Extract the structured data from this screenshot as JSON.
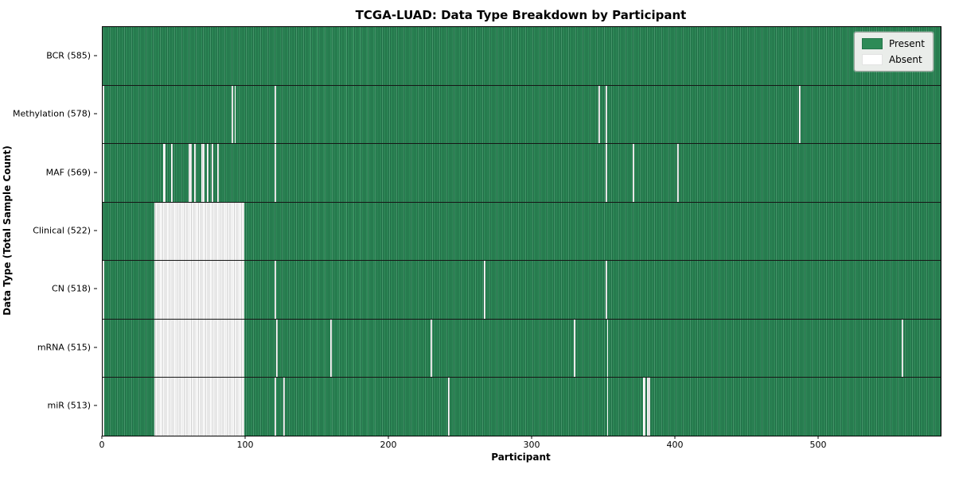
{
  "title": "TCGA-LUAD: Data Type Breakdown by Participant",
  "xlabel": "Participant",
  "ylabel": "Data Type (Total Sample Count)",
  "legend": {
    "present_label": "Present",
    "absent_label": "Absent"
  },
  "colors": {
    "present_fill": "#2e8b57",
    "present_edge": "#1e6a44",
    "absent_fill": "#ffffff",
    "absent_edge": "#cfcfcf"
  },
  "chart_data": {
    "type": "heatmap",
    "title": "TCGA-LUAD: Data Type Breakdown by Participant",
    "xlabel": "Participant",
    "ylabel": "Data Type (Total Sample Count)",
    "x_total_participants": 585,
    "x_ticks": [
      0,
      100,
      200,
      300,
      400,
      500
    ],
    "legend_entries": [
      "Present",
      "Absent"
    ],
    "legend_position": "upper right",
    "rows": [
      {
        "label": "BCR",
        "present_count": 585,
        "display": "BCR (585)",
        "absent_ranges": [],
        "absent_singles": []
      },
      {
        "label": "Methylation",
        "present_count": 578,
        "display": "Methylation (578)",
        "absent_ranges": [],
        "absent_singles": [
          0,
          90,
          92,
          120,
          346,
          351,
          486
        ]
      },
      {
        "label": "MAF",
        "present_count": 569,
        "display": "MAF (569)",
        "absent_ranges": [],
        "absent_singles": [
          0,
          42,
          43,
          48,
          60,
          61,
          64,
          69,
          70,
          73,
          76,
          80,
          120,
          351,
          370,
          401
        ]
      },
      {
        "label": "Clinical",
        "present_count": 522,
        "display": "Clinical (522)",
        "absent_ranges": [
          [
            36,
            98
          ]
        ],
        "absent_singles": []
      },
      {
        "label": "CN",
        "present_count": 518,
        "display": "CN (518)",
        "absent_ranges": [
          [
            36,
            98
          ]
        ],
        "absent_singles": [
          0,
          120,
          266,
          351
        ]
      },
      {
        "label": "mRNA",
        "present_count": 515,
        "display": "mRNA (515)",
        "absent_ranges": [
          [
            36,
            98
          ]
        ],
        "absent_singles": [
          0,
          121,
          159,
          229,
          329,
          352,
          558
        ]
      },
      {
        "label": "miR",
        "present_count": 513,
        "display": "miR (513)",
        "absent_ranges": [
          [
            36,
            98
          ]
        ],
        "absent_singles": [
          0,
          120,
          126,
          241,
          352,
          377,
          378,
          380,
          381
        ]
      }
    ]
  }
}
